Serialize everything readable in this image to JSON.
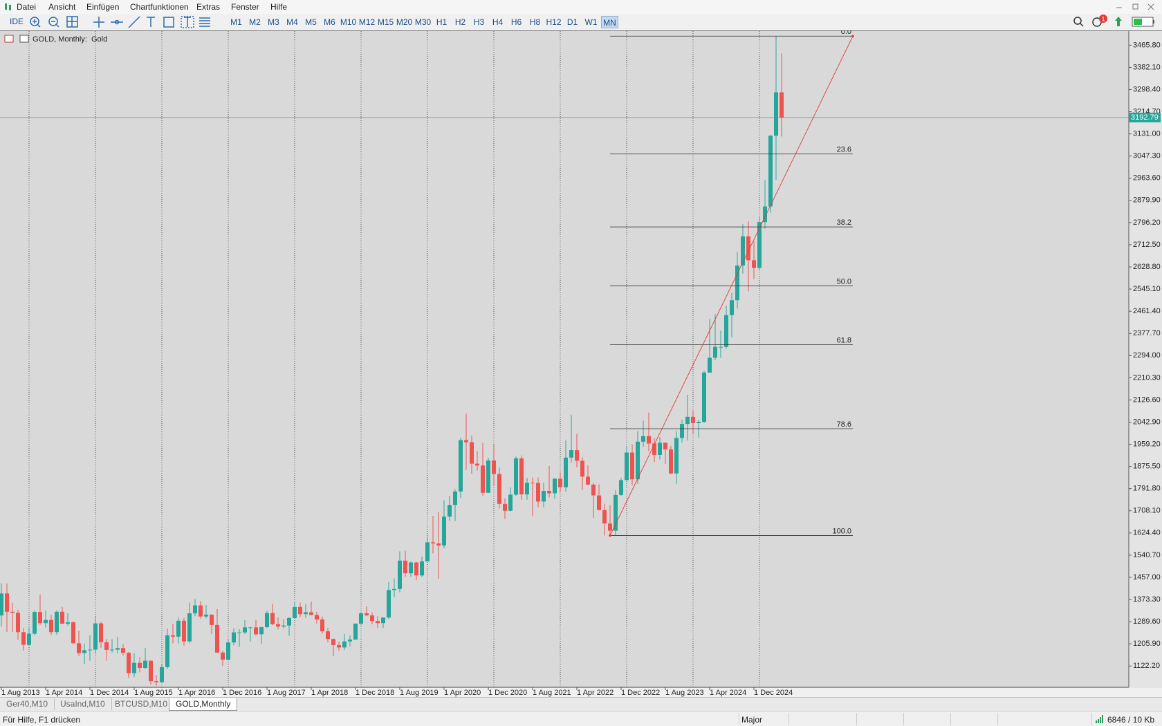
{
  "menu": [
    "Datei",
    "Ansicht",
    "Einfügen",
    "Chartfunktionen",
    "Extras",
    "Fenster",
    "Hilfe"
  ],
  "toolbar": {
    "ide": "IDE",
    "timeframes": [
      "M1",
      "M2",
      "M3",
      "M4",
      "M5",
      "M6",
      "M10",
      "M12",
      "M15",
      "M20",
      "M30",
      "H1",
      "H2",
      "H3",
      "H4",
      "H6",
      "H8",
      "H12",
      "D1",
      "W1",
      "MN"
    ],
    "notifications": "1"
  },
  "chart_data": {
    "type": "candlestick",
    "title": "GOLD, Monthly:  Gold",
    "categories": [
      "1 Aug 2013",
      null,
      null,
      null,
      null,
      null,
      null,
      null,
      "1 Apr 2014",
      null,
      null,
      null,
      null,
      null,
      null,
      null,
      "1 Dec 2014",
      null,
      null,
      null,
      null,
      null,
      null,
      null,
      "1 Aug 2015",
      null,
      null,
      null,
      null,
      null,
      null,
      null,
      "1 Apr 2016",
      null,
      null,
      null,
      null,
      null,
      null,
      null,
      "1 Dec 2016",
      null,
      null,
      null,
      null,
      null,
      null,
      null,
      "1 Aug 2017",
      null,
      null,
      null,
      null,
      null,
      null,
      null,
      "1 Apr 2018",
      null,
      null,
      null,
      null,
      null,
      null,
      null,
      "1 Dec 2018",
      null,
      null,
      null,
      null,
      null,
      null,
      null,
      "1 Aug 2019",
      null,
      null,
      null,
      null,
      null,
      null,
      null,
      "1 Apr 2020",
      null,
      null,
      null,
      null,
      null,
      null,
      null,
      "1 Dec 2020",
      null,
      null,
      null,
      null,
      null,
      null,
      null,
      "1 Aug 2021",
      null,
      null,
      null,
      null,
      null,
      null,
      null,
      "1 Apr 2022",
      null,
      null,
      null,
      null,
      null,
      null,
      null,
      "1 Dec 2022",
      null,
      null,
      null,
      null,
      null,
      null,
      null,
      "1 Aug 2023",
      null,
      null,
      null,
      null,
      null,
      null,
      null,
      "1 Apr 2024",
      null,
      null,
      null,
      null,
      null,
      null,
      null,
      "1 Dec 2024",
      null,
      null,
      null,
      null,
      null
    ],
    "ohlc": [
      [
        1313,
        1434,
        1271,
        1396
      ],
      [
        1396,
        1434,
        1251,
        1327
      ],
      [
        1327,
        1361,
        1251,
        1323
      ],
      [
        1323,
        1334,
        1221,
        1250
      ],
      [
        1250,
        1267,
        1180,
        1202
      ],
      [
        1202,
        1268,
        1200,
        1244
      ],
      [
        1244,
        1332,
        1238,
        1326
      ],
      [
        1326,
        1392,
        1277,
        1284
      ],
      [
        1284,
        1331,
        1268,
        1296
      ],
      [
        1296,
        1315,
        1240,
        1250
      ],
      [
        1250,
        1332,
        1240,
        1327
      ],
      [
        1327,
        1345,
        1280,
        1282
      ],
      [
        1282,
        1321,
        1274,
        1287
      ],
      [
        1287,
        1291,
        1205,
        1208
      ],
      [
        1208,
        1256,
        1160,
        1171
      ],
      [
        1171,
        1207,
        1131,
        1182
      ],
      [
        1182,
        1238,
        1142,
        1184
      ],
      [
        1184,
        1307,
        1167,
        1283
      ],
      [
        1283,
        1289,
        1191,
        1212
      ],
      [
        1212,
        1224,
        1142,
        1183
      ],
      [
        1183,
        1224,
        1173,
        1184
      ],
      [
        1184,
        1232,
        1169,
        1190
      ],
      [
        1190,
        1205,
        1162,
        1172
      ],
      [
        1172,
        1175,
        1077,
        1095
      ],
      [
        1095,
        1170,
        1080,
        1134
      ],
      [
        1134,
        1156,
        1098,
        1115
      ],
      [
        1115,
        1191,
        1111,
        1142
      ],
      [
        1142,
        1143,
        1052,
        1065
      ],
      [
        1065,
        1088,
        1046,
        1061
      ],
      [
        1061,
        1128,
        1061,
        1118
      ],
      [
        1118,
        1263,
        1111,
        1238
      ],
      [
        1238,
        1282,
        1208,
        1233
      ],
      [
        1233,
        1304,
        1207,
        1293
      ],
      [
        1293,
        1303,
        1199,
        1215
      ],
      [
        1215,
        1362,
        1208,
        1321
      ],
      [
        1321,
        1375,
        1310,
        1351
      ],
      [
        1351,
        1367,
        1301,
        1309
      ],
      [
        1309,
        1352,
        1302,
        1316
      ],
      [
        1316,
        1318,
        1242,
        1277
      ],
      [
        1277,
        1337,
        1171,
        1173
      ],
      [
        1173,
        1180,
        1122,
        1146
      ],
      [
        1146,
        1220,
        1146,
        1211
      ],
      [
        1211,
        1264,
        1200,
        1249
      ],
      [
        1249,
        1261,
        1194,
        1249
      ],
      [
        1249,
        1295,
        1243,
        1268
      ],
      [
        1268,
        1270,
        1214,
        1268
      ],
      [
        1268,
        1296,
        1236,
        1242
      ],
      [
        1242,
        1270,
        1205,
        1269
      ],
      [
        1269,
        1331,
        1265,
        1322
      ],
      [
        1322,
        1357,
        1276,
        1280
      ],
      [
        1280,
        1306,
        1260,
        1271
      ],
      [
        1271,
        1299,
        1264,
        1275
      ],
      [
        1275,
        1307,
        1236,
        1303
      ],
      [
        1303,
        1366,
        1302,
        1345
      ],
      [
        1345,
        1361,
        1307,
        1318
      ],
      [
        1318,
        1356,
        1303,
        1325
      ],
      [
        1325,
        1365,
        1313,
        1315
      ],
      [
        1315,
        1326,
        1282,
        1298
      ],
      [
        1298,
        1309,
        1245,
        1253
      ],
      [
        1253,
        1266,
        1211,
        1224
      ],
      [
        1224,
        1227,
        1160,
        1201
      ],
      [
        1201,
        1214,
        1180,
        1192
      ],
      [
        1192,
        1243,
        1182,
        1215
      ],
      [
        1215,
        1237,
        1196,
        1222
      ],
      [
        1222,
        1284,
        1221,
        1282
      ],
      [
        1282,
        1326,
        1276,
        1321
      ],
      [
        1321,
        1347,
        1310,
        1313
      ],
      [
        1313,
        1324,
        1280,
        1292
      ],
      [
        1292,
        1310,
        1266,
        1284
      ],
      [
        1284,
        1306,
        1266,
        1305
      ],
      [
        1305,
        1439,
        1300,
        1409
      ],
      [
        1409,
        1453,
        1382,
        1413
      ],
      [
        1413,
        1555,
        1400,
        1520
      ],
      [
        1520,
        1557,
        1459,
        1472
      ],
      [
        1472,
        1517,
        1459,
        1513
      ],
      [
        1513,
        1515,
        1446,
        1464
      ],
      [
        1464,
        1535,
        1458,
        1517
      ],
      [
        1517,
        1611,
        1517,
        1589
      ],
      [
        1589,
        1689,
        1547,
        1585
      ],
      [
        1585,
        1704,
        1451,
        1577
      ],
      [
        1577,
        1748,
        1567,
        1686
      ],
      [
        1686,
        1765,
        1670,
        1730
      ],
      [
        1730,
        1789,
        1670,
        1781
      ],
      [
        1781,
        1984,
        1757,
        1975
      ],
      [
        1975,
        2075,
        1863,
        1967
      ],
      [
        1967,
        1992,
        1848,
        1886
      ],
      [
        1886,
        1933,
        1860,
        1879
      ],
      [
        1879,
        1965,
        1764,
        1776
      ],
      [
        1776,
        1908,
        1775,
        1898
      ],
      [
        1898,
        1959,
        1803,
        1847
      ],
      [
        1847,
        1871,
        1717,
        1734
      ],
      [
        1734,
        1755,
        1677,
        1708
      ],
      [
        1708,
        1797,
        1706,
        1769
      ],
      [
        1769,
        1913,
        1765,
        1906
      ],
      [
        1906,
        1917,
        1750,
        1770
      ],
      [
        1770,
        1833,
        1750,
        1814
      ],
      [
        1814,
        1834,
        1688,
        1813
      ],
      [
        1813,
        1834,
        1721,
        1743
      ],
      [
        1743,
        1814,
        1722,
        1783
      ],
      [
        1783,
        1877,
        1758,
        1774
      ],
      [
        1774,
        1831,
        1753,
        1829
      ],
      [
        1829,
        1853,
        1780,
        1797
      ],
      [
        1797,
        1974,
        1781,
        1909
      ],
      [
        1909,
        2070,
        1890,
        1937
      ],
      [
        1937,
        1998,
        1872,
        1897
      ],
      [
        1897,
        1910,
        1787,
        1837
      ],
      [
        1837,
        1879,
        1805,
        1807
      ],
      [
        1807,
        1814,
        1681,
        1766
      ],
      [
        1766,
        1808,
        1709,
        1711
      ],
      [
        1711,
        1735,
        1615,
        1660
      ],
      [
        1660,
        1730,
        1617,
        1633
      ],
      [
        1633,
        1786,
        1616,
        1768
      ],
      [
        1768,
        1833,
        1765,
        1824
      ],
      [
        1824,
        1949,
        1823,
        1928
      ],
      [
        1928,
        1959,
        1805,
        1827
      ],
      [
        1827,
        2009,
        1810,
        1969
      ],
      [
        1969,
        2048,
        1950,
        1990
      ],
      [
        1990,
        2079,
        1932,
        1962
      ],
      [
        1962,
        1983,
        1893,
        1919
      ],
      [
        1919,
        1987,
        1902,
        1965
      ],
      [
        1965,
        1966,
        1885,
        1940
      ],
      [
        1940,
        1953,
        1846,
        1849
      ],
      [
        1849,
        2009,
        1810,
        1983
      ],
      [
        1983,
        2052,
        1965,
        2036
      ],
      [
        2036,
        2146,
        1973,
        2063
      ],
      [
        2063,
        2088,
        2001,
        2039
      ],
      [
        2039,
        2052,
        1984,
        2044
      ],
      [
        2044,
        2236,
        2039,
        2230
      ],
      [
        2230,
        2432,
        2229,
        2286
      ],
      [
        2286,
        2450,
        2277,
        2327
      ],
      [
        2327,
        2388,
        2286,
        2327
      ],
      [
        2327,
        2483,
        2319,
        2447
      ],
      [
        2447,
        2531,
        2364,
        2503
      ],
      [
        2503,
        2686,
        2472,
        2634
      ],
      [
        2634,
        2790,
        2604,
        2744
      ],
      [
        2744,
        2801,
        2537,
        2654
      ],
      [
        2654,
        2726,
        2583,
        2625
      ],
      [
        2625,
        2817,
        2615,
        2798
      ],
      [
        2798,
        2956,
        2773,
        2857
      ],
      [
        2857,
        3128,
        2833,
        3124
      ],
      [
        3124,
        3500,
        2957,
        3288
      ],
      [
        3288,
        3435,
        3121,
        3192.79
      ]
    ],
    "up_color": "#26a69a",
    "down_color": "#ef5350",
    "ylim": [
      1041.8,
      3516.4
    ],
    "yticks": [
      {
        "value": 3465.8,
        "label": "3465.80"
      },
      {
        "value": 3382.1,
        "label": "3382.10"
      },
      {
        "value": 3298.4,
        "label": "3298.40"
      },
      {
        "value": 3214.7,
        "label": "3214.70"
      },
      {
        "value": 3131,
        "label": "3131.00"
      },
      {
        "value": 3047.3,
        "label": "3047.30"
      },
      {
        "value": 2963.6,
        "label": "2963.60"
      },
      {
        "value": 2879.9,
        "label": "2879.90"
      },
      {
        "value": 2796.2,
        "label": "2796.20"
      },
      {
        "value": 2712.5,
        "label": "2712.50"
      },
      {
        "value": 2628.8,
        "label": "2628.80"
      },
      {
        "value": 2545.1,
        "label": "2545.10"
      },
      {
        "value": 2461.4,
        "label": "2461.40"
      },
      {
        "value": 2377.7,
        "label": "2377.70"
      },
      {
        "value": 2294,
        "label": "2294.00"
      },
      {
        "value": 2210.3,
        "label": "2210.30"
      },
      {
        "value": 2126.6,
        "label": "2126.60"
      },
      {
        "value": 2042.9,
        "label": "2042.90"
      },
      {
        "value": 1959.2,
        "label": "1959.20"
      },
      {
        "value": 1875.5,
        "label": "1875.50"
      },
      {
        "value": 1791.8,
        "label": "1791.80"
      },
      {
        "value": 1708.1,
        "label": "1708.10"
      },
      {
        "value": 1624.4,
        "label": "1624.40"
      },
      {
        "value": 1540.7,
        "label": "1540.70"
      },
      {
        "value": 1457,
        "label": "1457.00"
      },
      {
        "value": 1373.3,
        "label": "1373.30"
      },
      {
        "value": 1289.6,
        "label": "1289.60"
      },
      {
        "value": 1205.9,
        "label": "1205.90"
      },
      {
        "value": 1122.2,
        "label": "1122.20"
      }
    ],
    "fibonacci": {
      "high": 3500,
      "low": 1614.6,
      "color": "#e53935",
      "levels": [
        {
          "value": 0,
          "label": "0.0"
        },
        23.6,
        38.2,
        {
          "value": 50,
          "label": "50.0"
        },
        61.8,
        78.6,
        {
          "value": 100,
          "label": "100.0"
        }
      ]
    }
  },
  "tabs": [
    "Ger40,M10",
    "UsaInd,M10",
    "BTCUSD,M10",
    "GOLD,Monthly"
  ],
  "status_bar": {
    "help": "Für Hilfe, F1 drücken",
    "profile": "Major",
    "traffic": "6846 / 10 Kb"
  }
}
